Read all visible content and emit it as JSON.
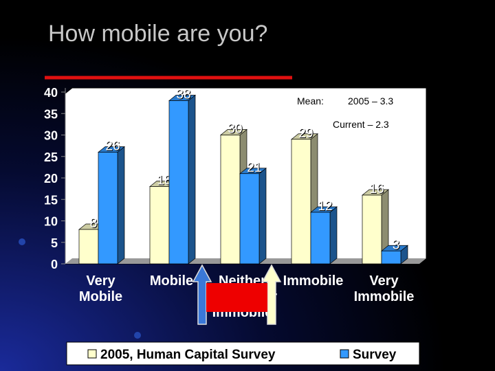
{
  "chart_data": {
    "type": "bar",
    "title": "How mobile are you?",
    "categories": [
      "Very Mobile",
      "Mobile",
      "Neither Mobile nor Immobile",
      "Immobile",
      "Very Immobile"
    ],
    "series": [
      {
        "name": "2005, Human Capital Survey",
        "color": "#ffffcc",
        "values": [
          8,
          18,
          30,
          29,
          16
        ]
      },
      {
        "name": "Survey",
        "color": "#3399ff",
        "values": [
          26,
          38,
          21,
          12,
          3
        ]
      }
    ],
    "ylim": [
      0,
      40
    ],
    "yticks": [
      0,
      5,
      10,
      15,
      20,
      25,
      30,
      35,
      40
    ],
    "annotations": [
      "Mean:",
      "2005 – 3.3",
      "Current – 2.3"
    ]
  }
}
